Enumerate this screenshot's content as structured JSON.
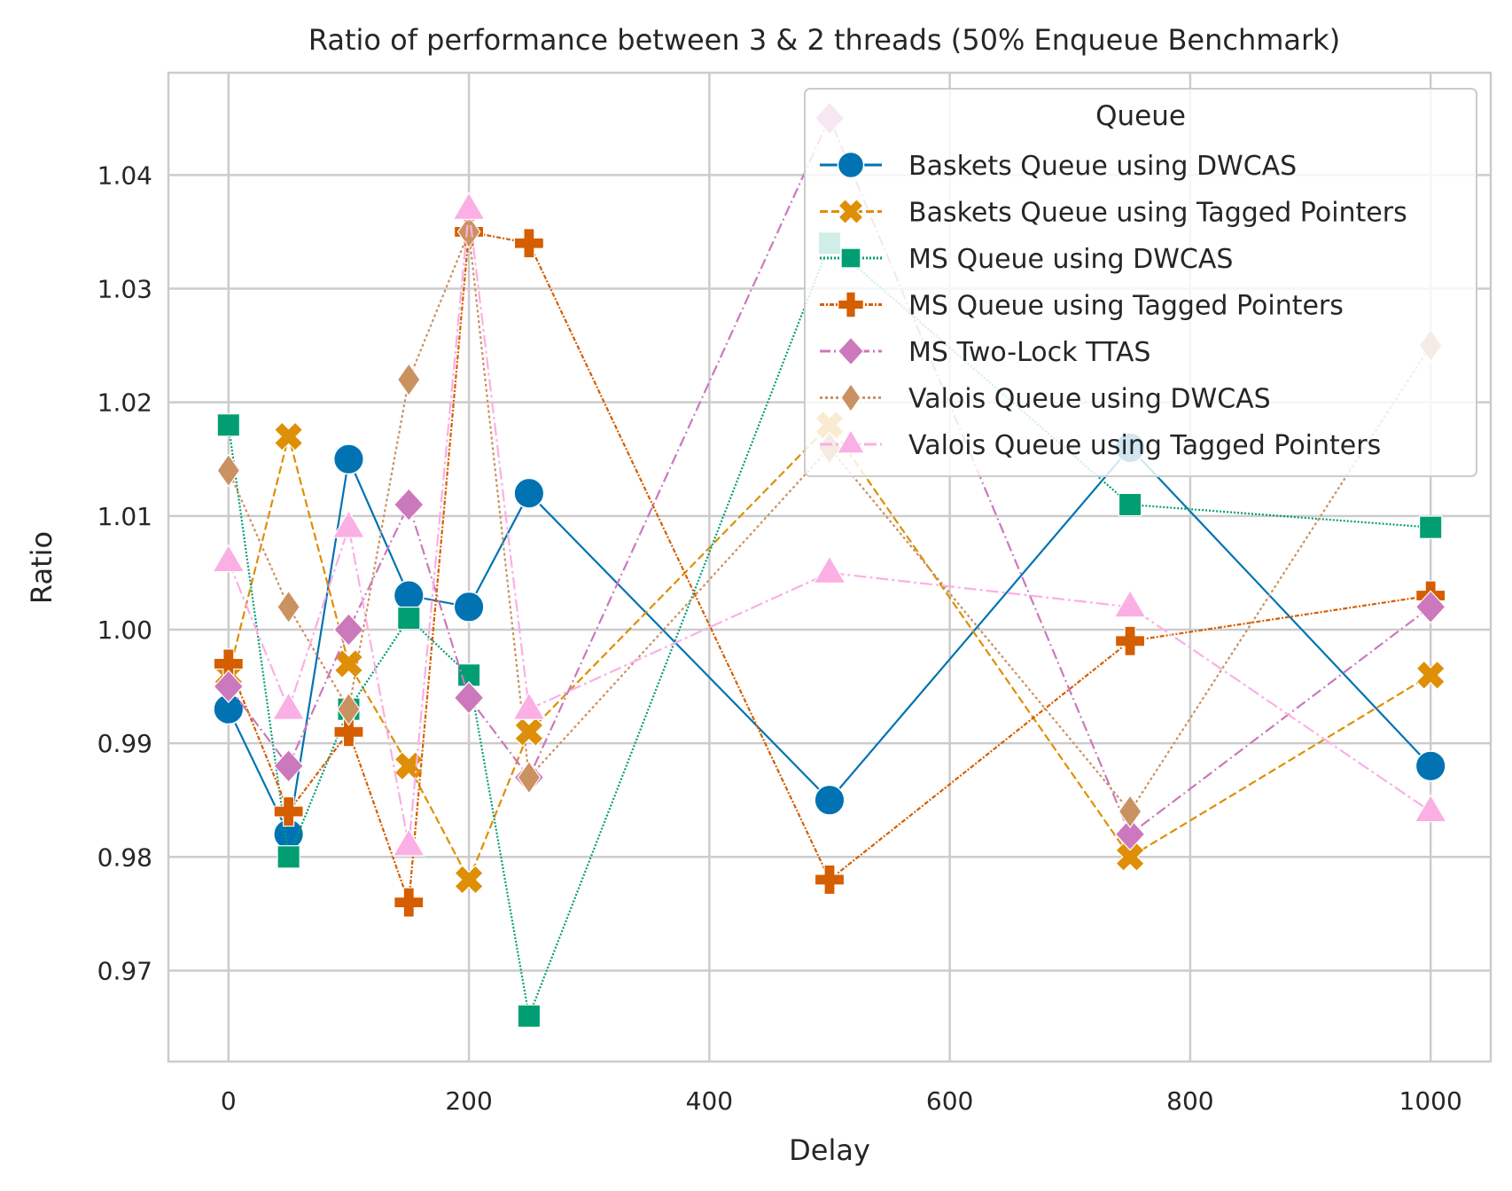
{
  "chart_data": {
    "type": "line",
    "title": "Ratio of performance between 3 & 2 threads (50% Enqueue Benchmark)",
    "xlabel": "Delay",
    "ylabel": "Ratio",
    "xlim": [
      -50,
      1050
    ],
    "ylim": [
      0.962,
      1.049
    ],
    "xticks": [
      0,
      200,
      400,
      600,
      800,
      1000
    ],
    "xtick_labels": [
      "0",
      "200",
      "400",
      "600",
      "800",
      "1000"
    ],
    "yticks": [
      0.97,
      0.98,
      0.99,
      1.0,
      1.01,
      1.02,
      1.03,
      1.04
    ],
    "ytick_labels": [
      "0.97",
      "0.98",
      "0.99",
      "1.00",
      "1.01",
      "1.02",
      "1.03",
      "1.04"
    ],
    "grid": true,
    "legend": {
      "title": "Queue",
      "placement": "top-right"
    },
    "x": [
      0,
      50,
      100,
      150,
      200,
      250,
      500,
      750,
      1000
    ],
    "series": [
      {
        "name": "Baskets Queue using DWCAS",
        "color": "#0173b2",
        "marker": "circle",
        "dash": "solid",
        "values": [
          0.993,
          0.982,
          1.015,
          1.003,
          1.002,
          1.012,
          0.985,
          1.016,
          0.988
        ]
      },
      {
        "name": "Baskets Queue using Tagged Pointers",
        "color": "#de8f05",
        "marker": "x-filled",
        "dash": "dashed",
        "values": [
          0.996,
          1.017,
          0.997,
          0.988,
          0.978,
          0.991,
          1.018,
          0.98,
          0.996
        ]
      },
      {
        "name": "MS Queue using DWCAS",
        "color": "#029e73",
        "marker": "square",
        "dash": "dotted",
        "values": [
          1.018,
          0.98,
          0.993,
          1.001,
          0.996,
          0.966,
          1.034,
          1.011,
          1.009
        ]
      },
      {
        "name": "MS Queue using Tagged Pointers",
        "color": "#d55e00",
        "marker": "plus-filled",
        "dash": "dashdot-dense",
        "values": [
          0.997,
          0.984,
          0.991,
          0.976,
          1.035,
          1.034,
          0.978,
          0.999,
          1.003
        ]
      },
      {
        "name": "MS Two-Lock TTAS",
        "color": "#cc78bc",
        "marker": "diamond",
        "dash": "dashdot",
        "values": [
          0.995,
          0.988,
          1.0,
          1.011,
          0.994,
          0.987,
          1.045,
          0.982,
          1.002
        ]
      },
      {
        "name": "Valois Queue using DWCAS",
        "color": "#ca9161",
        "marker": "thin-diamond",
        "dash": "dotted-loose",
        "values": [
          1.014,
          1.002,
          0.993,
          1.022,
          1.035,
          0.987,
          1.016,
          0.984,
          1.025
        ]
      },
      {
        "name": "Valois Queue using Tagged Pointers",
        "color": "#fbafe4",
        "marker": "triangle",
        "dash": "dashdot-long",
        "values": [
          1.006,
          0.993,
          1.009,
          0.981,
          1.037,
          0.993,
          1.005,
          1.002,
          0.984
        ]
      }
    ]
  }
}
